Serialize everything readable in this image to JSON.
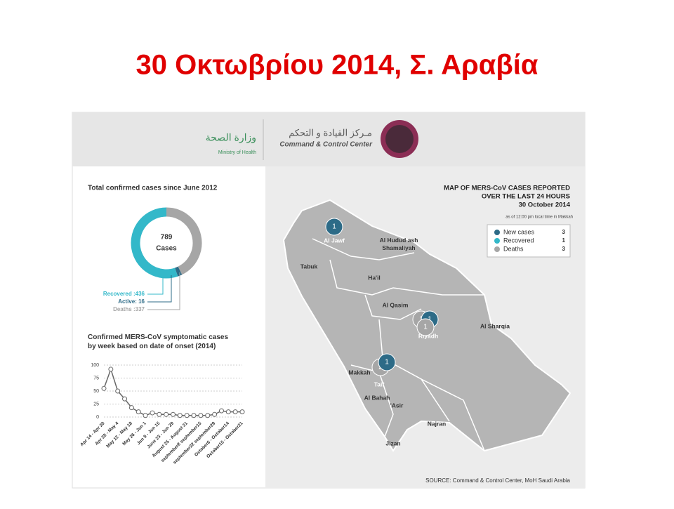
{
  "title": "30 Οκτωβρίου 2014, Σ. Αραβία",
  "header": {
    "ministry_ar": "وزارة الصحة",
    "ministry_en": "Ministry of Health",
    "center_ar": "مـركز القيادة و التحكم",
    "center_en": "Command & Control Center"
  },
  "chart_data": [
    {
      "type": "donut",
      "title": "Total confirmed cases since June 2012",
      "values": [
        436,
        16,
        337
      ],
      "value_labels": [
        "Recovered :436",
        "Active: 16",
        "Deaths :337"
      ],
      "colors": [
        "#33b8c9",
        "#2d6b87",
        "#a6a6a6"
      ],
      "total": 789,
      "center_label": "Cases"
    },
    {
      "type": "line",
      "title": "Confirmed MERS-CoV symptomatic cases by week based on date of onset (2014)",
      "categories": [
        "Apr 14 - Apr 20",
        null,
        "Apr 28 - May 4",
        null,
        "May 12 - May 18",
        null,
        "May 26 - Jun 1",
        null,
        "Jun 9 - Jun 15",
        null,
        "June 23 - Jun 29",
        null,
        "August 25 - August 31",
        null,
        "september8 september15",
        null,
        "september22 september29",
        null,
        "October6 - October14",
        null,
        "October15 - October21"
      ],
      "values": [
        55,
        92,
        50,
        35,
        18,
        10,
        3,
        8,
        5,
        5,
        5,
        3,
        3,
        3,
        3,
        3,
        5,
        12,
        10,
        10,
        10
      ],
      "color": "#666666",
      "ylim": [
        0,
        100
      ],
      "yticks": [
        0,
        25,
        50,
        75,
        100
      ],
      "grid": true
    }
  ],
  "map": {
    "title": [
      "MAP OF MERS-CoV CASES REPORTED",
      "OVER THE  LAST 24 HOURS",
      "30 October 2014"
    ],
    "note": "as of 12:00 pm local time in Makkah",
    "legend": [
      {
        "name": "New cases",
        "count": "3",
        "color": "#2d6b87"
      },
      {
        "name": "Recovered",
        "count": "1",
        "color": "#33b8c9"
      },
      {
        "name": "Deaths",
        "count": "3",
        "color": "#a6a6a6"
      }
    ],
    "regions": [
      "Al Jawf",
      "Al Hudud ash Shamaliyah",
      "Tabuk",
      "Ha'il",
      "Al Qasim",
      "Al Sharqia",
      "Riyadh",
      "Makkah",
      "Taif",
      "Al Bahah",
      "'Asir",
      "Najran",
      "Jizan"
    ],
    "markers": [
      {
        "region": "Al Jawf",
        "numbers": [
          "1"
        ]
      },
      {
        "region": "Riyadh",
        "numbers": [
          "1",
          "1",
          "1"
        ]
      },
      {
        "region": "Taif",
        "numbers": [
          "2",
          "1"
        ]
      }
    ],
    "source": "SOURCE: Command & Control Center, MoH Saudi Arabia"
  }
}
